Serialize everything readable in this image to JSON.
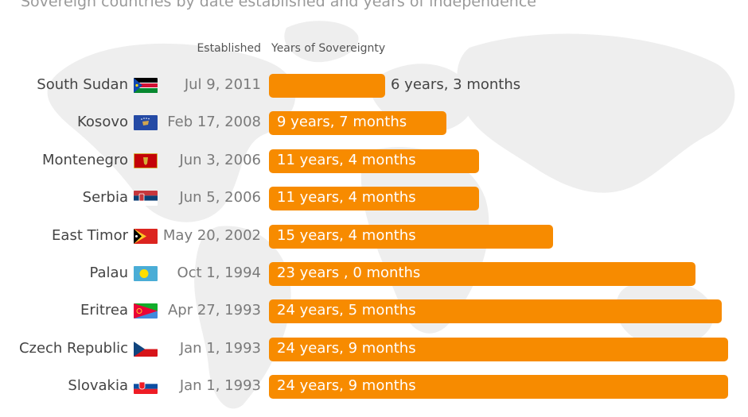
{
  "subtitle": "Sovereign countries by date established and years of independence",
  "headers": {
    "established": "Established",
    "years": "Years of Sovereignty"
  },
  "colors": {
    "bar": "#f78b00",
    "map": "#eeeeee",
    "subtitle": "#9a9a9a"
  },
  "chart_data": {
    "type": "bar",
    "orientation": "horizontal",
    "title": "",
    "subtitle": "Sovereign countries by date established and years of independence",
    "columns": [
      "Established",
      "Years of Sovereignty"
    ],
    "rows": [
      {
        "country": "South Sudan",
        "flag": "south-sudan-flag-icon",
        "established": "Jul 9, 2011",
        "label": "6 years, 3 months",
        "value": 6.25
      },
      {
        "country": "Kosovo",
        "flag": "kosovo-flag-icon",
        "established": "Feb 17, 2008",
        "label": "9 years, 7 months",
        "value": 9.583
      },
      {
        "country": "Montenegro",
        "flag": "montenegro-flag-icon",
        "established": "Jun 3, 2006",
        "label": "11 years, 4 months",
        "value": 11.333
      },
      {
        "country": "Serbia",
        "flag": "serbia-flag-icon",
        "established": "Jun 5, 2006",
        "label": "11 years, 4 months",
        "value": 11.333
      },
      {
        "country": "East Timor",
        "flag": "east-timor-flag-icon",
        "established": "May 20, 2002",
        "label": "15 years, 4 months",
        "value": 15.333
      },
      {
        "country": "Palau",
        "flag": "palau-flag-icon",
        "established": "Oct 1, 1994",
        "label": "23 years , 0 months",
        "value": 23.0
      },
      {
        "country": "Eritrea",
        "flag": "eritrea-flag-icon",
        "established": "Apr 27, 1993",
        "label": "24 years, 5 months",
        "value": 24.417
      },
      {
        "country": "Czech Republic",
        "flag": "czech-republic-flag-icon",
        "established": "Jan 1, 1993",
        "label": "24 years, 9 months",
        "value": 24.75
      },
      {
        "country": "Slovakia",
        "flag": "slovakia-flag-icon",
        "established": "Jan 1, 1993",
        "label": "24 years, 9 months",
        "value": 24.75
      }
    ]
  }
}
